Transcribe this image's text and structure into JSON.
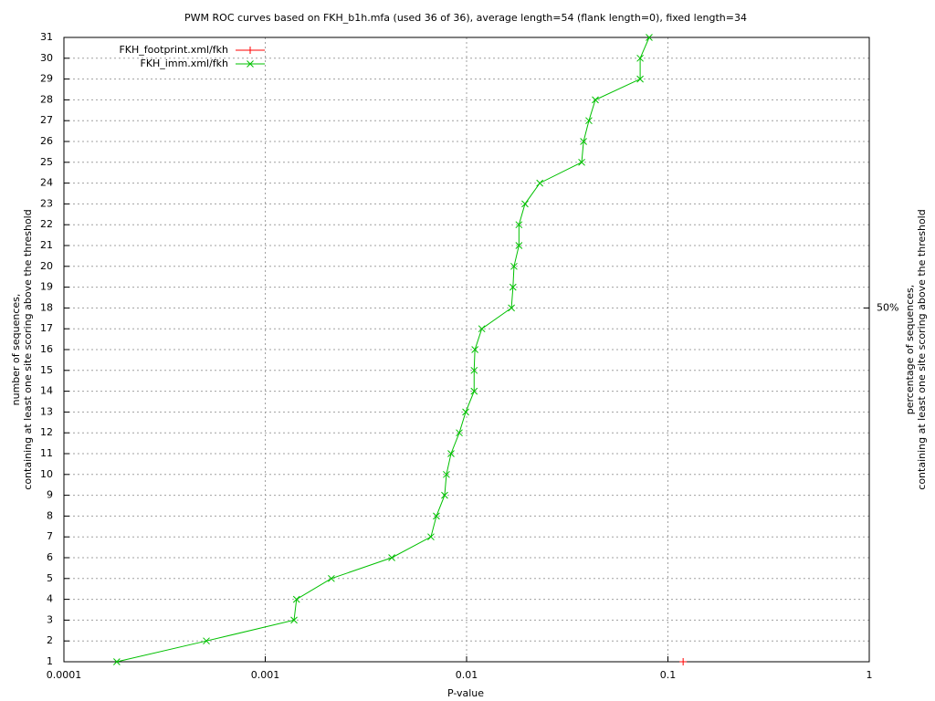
{
  "chart_data": {
    "type": "line",
    "title": "PWM ROC curves based on FKH_b1h.mfa (used 36 of 36), average length=54 (flank length=0), fixed length=34",
    "xlabel": "P-value",
    "ylabel": [
      "number of sequences,",
      "containing at least one site scoring above the threshold"
    ],
    "y2label": [
      "percentage of sequences,",
      "containing at least one site scoring above the threshold"
    ],
    "xscale": "log",
    "xlim": [
      0.0001,
      1
    ],
    "xticks": [
      0.0001,
      0.001,
      0.01,
      0.1,
      1
    ],
    "ylim": [
      1,
      31
    ],
    "yticks": [
      1,
      2,
      3,
      4,
      5,
      6,
      7,
      8,
      9,
      10,
      11,
      12,
      13,
      14,
      15,
      16,
      17,
      18,
      19,
      20,
      21,
      22,
      23,
      24,
      25,
      26,
      27,
      28,
      29,
      30,
      31
    ],
    "y2lim": [
      2.7778,
      86.111
    ],
    "y2ticks": [
      {
        "value": 50,
        "label": "50%"
      }
    ],
    "grid": true,
    "legend": "top-left",
    "series": [
      {
        "name": "FKH_footprint.xml/fkh",
        "color": "#ff0000",
        "marker": "+",
        "x": [
          0.119
        ],
        "values": [
          1
        ]
      },
      {
        "name": "FKH_imm.xml/fkh",
        "color": "#00c000",
        "marker": "x",
        "x": [
          0.000183,
          0.00051,
          0.00139,
          0.00143,
          0.00213,
          0.00425,
          0.00665,
          0.00708,
          0.00778,
          0.00794,
          0.00837,
          0.0092,
          0.0099,
          0.0109,
          0.0109,
          0.011,
          0.0119,
          0.0167,
          0.017,
          0.0172,
          0.0182,
          0.0182,
          0.0195,
          0.0231,
          0.0373,
          0.0381,
          0.0405,
          0.0436,
          0.0728,
          0.0728,
          0.0807
        ],
        "values": [
          1,
          2,
          3,
          4,
          5,
          6,
          7,
          8,
          9,
          10,
          11,
          12,
          13,
          14,
          15,
          16,
          17,
          18,
          19,
          20,
          21,
          22,
          23,
          24,
          25,
          26,
          27,
          28,
          29,
          30,
          31
        ]
      }
    ]
  }
}
